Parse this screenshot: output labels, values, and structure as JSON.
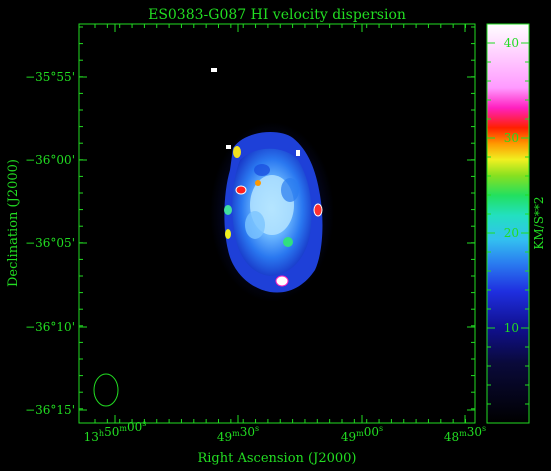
{
  "title": "ES0383-G087   HI velocity dispersion",
  "xlabel": "Right Ascension (J2000)",
  "ylabel": "Declination (J2000)",
  "colorbar_label": "KM/S**2",
  "x_ticks": [
    {
      "h": "13",
      "m": "50",
      "s": "00",
      "hasHour": true
    },
    {
      "h": "",
      "m": "49",
      "s": "30",
      "hasHour": false
    },
    {
      "h": "",
      "m": "49",
      "s": "00",
      "hasHour": false
    },
    {
      "h": "",
      "m": "48",
      "s": "30",
      "hasHour": false
    }
  ],
  "y_ticks": [
    "−35°55'",
    "−36°00'",
    "−36°05'",
    "−36°10'",
    "−36°15'"
  ],
  "colorbar_ticks": [
    10,
    20,
    30,
    40
  ],
  "colorbar_range": [
    0,
    42
  ],
  "colors": {
    "axis": "#22dd22",
    "background": "#000000"
  }
}
